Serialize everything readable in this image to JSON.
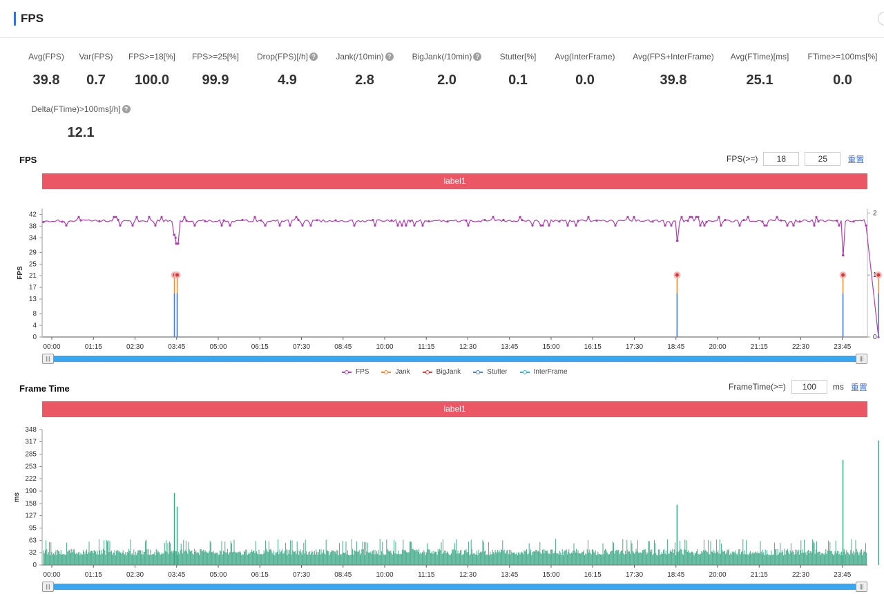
{
  "header": {
    "title": "FPS"
  },
  "metrics": [
    {
      "label": "Avg(FPS)",
      "value": "39.8",
      "help": false
    },
    {
      "label": "Var(FPS)",
      "value": "0.7",
      "help": false
    },
    {
      "label": "FPS>=18[%]",
      "value": "100.0",
      "help": false
    },
    {
      "label": "FPS>=25[%]",
      "value": "99.9",
      "help": false
    },
    {
      "label": "Drop(FPS)[/h]",
      "value": "4.9",
      "help": true
    },
    {
      "label": "Jank(/10min)",
      "value": "2.8",
      "help": true
    },
    {
      "label": "BigJank(/10min)",
      "value": "2.0",
      "help": true
    },
    {
      "label": "Stutter[%]",
      "value": "0.1",
      "help": false
    },
    {
      "label": "Avg(InterFrame)",
      "value": "0.0",
      "help": false
    },
    {
      "label": "Avg(FPS+InterFrame)",
      "value": "39.8",
      "help": false
    },
    {
      "label": "Avg(FTime)[ms]",
      "value": "25.1",
      "help": false
    },
    {
      "label": "FTime>=100ms[%]",
      "value": "0.0",
      "help": false
    },
    {
      "label": "Delta(FTime)>100ms[/h]",
      "value": "12.1",
      "help": true
    }
  ],
  "fps_section": {
    "title": "FPS",
    "control_label": "FPS(>=)",
    "threshold_low": "18",
    "threshold_high": "25",
    "reset_label": "重置",
    "label_bar": "label1",
    "ylabel": "FPS"
  },
  "frametime_section": {
    "title": "Frame Time",
    "control_label": "FrameTime(>=)",
    "threshold": "100",
    "unit": "ms",
    "reset_label": "重置",
    "label_bar": "label1",
    "ylabel": "ms"
  },
  "colors": {
    "fps": "#b23fb0",
    "jank": "#f08a35",
    "bigjank": "#d23a3a",
    "stutter": "#4a7fd0",
    "interframe": "#35b8d0",
    "frametime": "#3aa784",
    "label_bar": "#ec5766",
    "slider": "#36a7f0"
  },
  "chart_data": [
    {
      "type": "line",
      "x_ticks": [
        "00:00",
        "01:15",
        "02:30",
        "03:45",
        "05:00",
        "06:15",
        "07:30",
        "08:45",
        "10:00",
        "11:15",
        "12:30",
        "13:45",
        "15:00",
        "16:15",
        "17:30",
        "18:45",
        "20:00",
        "21:15",
        "22:30",
        "23:45"
      ],
      "y_ticks": [
        "0",
        "4",
        "8",
        "13",
        "17",
        "21",
        "25",
        "29",
        "34",
        "38",
        "42"
      ],
      "ylim": [
        0,
        44
      ],
      "y2_ticks": [
        "0",
        "1",
        "2"
      ],
      "y2lim": [
        0,
        2
      ],
      "legend": [
        "FPS",
        "Jank",
        "BigJank",
        "Stutter",
        "InterFrame"
      ],
      "fps_baseline": 39.8,
      "fps_dips": [
        {
          "x": "03:41",
          "y": 35
        },
        {
          "x": "03:43",
          "y": 34
        },
        {
          "x": "03:46",
          "y": 32
        },
        {
          "x": "18:47",
          "y": 33
        },
        {
          "x": "23:46",
          "y": 28
        },
        {
          "x": "24:50",
          "y": 0
        }
      ],
      "jank_events": [
        {
          "x": "03:41",
          "value": 1
        },
        {
          "x": "03:46",
          "value": 1
        },
        {
          "x": "18:47",
          "value": 1
        },
        {
          "x": "23:46",
          "value": 1
        },
        {
          "x": "24:50",
          "value": 1
        }
      ]
    },
    {
      "type": "bar",
      "x_ticks": [
        "00:00",
        "01:15",
        "02:30",
        "03:45",
        "05:00",
        "06:15",
        "07:30",
        "08:45",
        "10:00",
        "11:15",
        "12:30",
        "13:45",
        "15:00",
        "16:15",
        "17:30",
        "18:45",
        "20:00",
        "21:15",
        "22:30",
        "23:45"
      ],
      "y_ticks": [
        "0",
        "32",
        "63",
        "95",
        "127",
        "158",
        "190",
        "222",
        "253",
        "285",
        "317",
        "348"
      ],
      "ylim": [
        0,
        348
      ],
      "series_name": "",
      "typical_range_ms": [
        25,
        55
      ],
      "spikes": [
        {
          "x": "03:41",
          "value": 185
        },
        {
          "x": "03:46",
          "value": 150
        },
        {
          "x": "18:47",
          "value": 155
        },
        {
          "x": "23:46",
          "value": 270
        },
        {
          "x": "24:50",
          "value": 320
        }
      ]
    }
  ]
}
